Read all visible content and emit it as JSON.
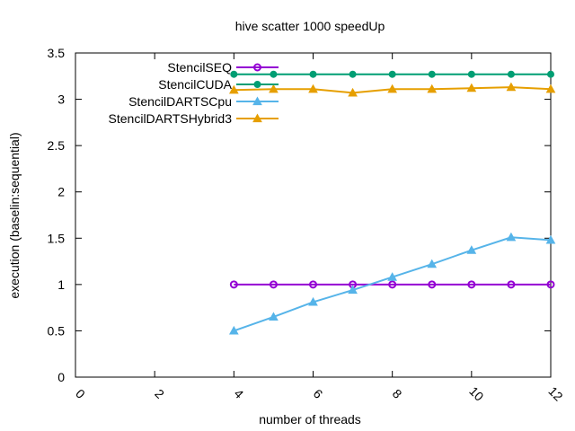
{
  "chart_data": {
    "type": "line",
    "title": "hive scatter 1000 speedUp",
    "xlabel": "number of threads",
    "ylabel": "execution (baselin:sequential)",
    "xlim": [
      0,
      12
    ],
    "ylim": [
      0,
      3.5
    ],
    "x_ticks": [
      0,
      2,
      4,
      6,
      8,
      10,
      12
    ],
    "y_ticks": [
      0,
      0.5,
      1,
      1.5,
      2,
      2.5,
      3,
      3.5
    ],
    "x_tick_labels": [
      "0",
      "2",
      "4",
      "6",
      "8",
      "10",
      "12"
    ],
    "y_tick_labels": [
      "0",
      "0.5",
      "1",
      "1.5",
      "2",
      "2.5",
      "3",
      "3.5"
    ],
    "grid": false,
    "legend_position": "top-left",
    "x": [
      4,
      5,
      6,
      7,
      8,
      9,
      10,
      11,
      12
    ],
    "series": [
      {
        "name": "StencilSEQ",
        "color": "#9400d3",
        "marker": "circle-open",
        "values": [
          1.0,
          1.0,
          1.0,
          1.0,
          1.0,
          1.0,
          1.0,
          1.0,
          1.0
        ]
      },
      {
        "name": "StencilCUDA",
        "color": "#009e73",
        "marker": "circle",
        "values": [
          3.27,
          3.27,
          3.27,
          3.27,
          3.27,
          3.27,
          3.27,
          3.27,
          3.27
        ]
      },
      {
        "name": "StencilDARTSCpu",
        "color": "#56b4e9",
        "marker": "triangle",
        "values": [
          0.5,
          0.65,
          0.81,
          0.94,
          1.08,
          1.22,
          1.37,
          1.51,
          1.48
        ]
      },
      {
        "name": "StencilDARTSHybrid3",
        "color": "#e69f00",
        "marker": "triangle",
        "values": [
          3.1,
          3.11,
          3.11,
          3.07,
          3.11,
          3.11,
          3.12,
          3.13,
          3.11
        ]
      }
    ]
  }
}
